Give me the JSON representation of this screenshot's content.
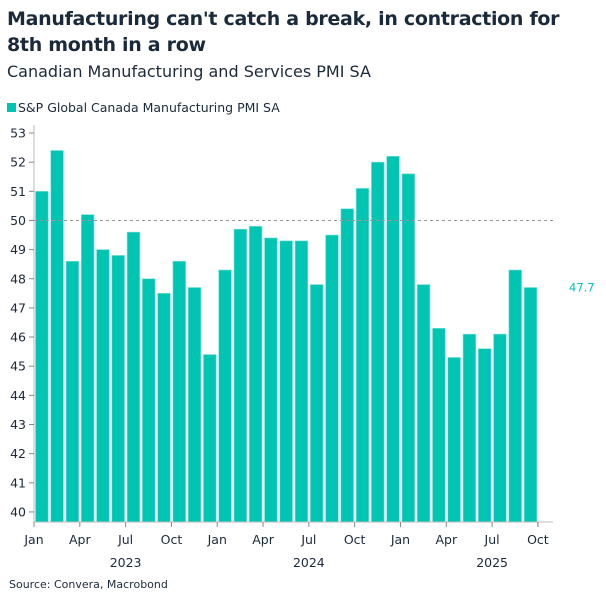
{
  "chart_data": {
    "type": "bar",
    "title": "Manufacturing can't catch a break, in contraction for 8th month in a row",
    "subtitle": "Canadian Manufacturing and Services PMI SA",
    "series": [
      {
        "name": "S&P Global Canada Manufacturing PMI SA",
        "color": "#00c5b2",
        "values": [
          51.0,
          52.4,
          48.6,
          50.2,
          49.0,
          48.8,
          49.6,
          48.0,
          47.5,
          48.6,
          47.7,
          45.4,
          48.3,
          49.7,
          49.8,
          49.4,
          49.3,
          49.3,
          47.8,
          49.5,
          50.4,
          51.1,
          52.0,
          52.2,
          51.6,
          47.8,
          46.3,
          45.3,
          46.1,
          45.6,
          46.1,
          48.3,
          47.7
        ]
      }
    ],
    "x_start": "2023-01",
    "x_end": "2025-09",
    "x_tick_labels": [
      "Jan",
      "Apr",
      "Jul",
      "Oct",
      "Jan",
      "Apr",
      "Jul",
      "Oct",
      "Jan",
      "Apr",
      "Jul",
      "Oct"
    ],
    "year_labels": [
      "2023",
      "2024",
      "2025"
    ],
    "y_ticks": [
      40,
      41,
      42,
      43,
      44,
      45,
      46,
      47,
      48,
      49,
      50,
      51,
      52,
      53
    ],
    "ylim": [
      39.65,
      53.3
    ],
    "reference_line": 50,
    "last_value_label": "47.7",
    "legend_position": "top-left",
    "grid": false,
    "source": "Source: Convera, Macrobond"
  }
}
